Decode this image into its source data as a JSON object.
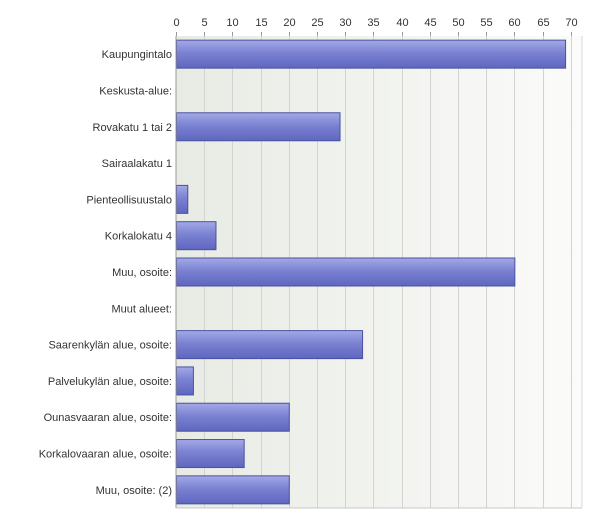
{
  "chart_data": {
    "type": "bar",
    "orientation": "horizontal",
    "categories": [
      "Kaupungintalo",
      "Keskusta-alue:",
      "Rovakatu 1 tai 2",
      "Sairaalakatu 1",
      "Pienteollisuustalo",
      "Korkalokatu 4",
      "Muu, osoite:",
      "Muut alueet:",
      "Saarenkylän alue, osoite:",
      "Palvelukylän alue, osoite:",
      "Ounasvaaran alue, osoite:",
      "Korkalovaaran alue, osoite:",
      "Muu, osoite: (2)"
    ],
    "values": [
      69,
      0,
      29,
      0,
      2,
      7,
      60,
      0,
      33,
      3,
      20,
      12,
      20
    ],
    "x_ticks": [
      "0",
      "5",
      "10",
      "15",
      "20",
      "25",
      "30",
      "35",
      "40",
      "45",
      "50",
      "55",
      "60",
      "65",
      "70"
    ],
    "xlim": [
      0,
      72
    ],
    "x_axis_position": "top",
    "grid": true,
    "title": "",
    "xlabel": "",
    "ylabel": "",
    "colors": {
      "bar_fill": "#7b82d2",
      "bar_edge": "#4a529e",
      "plot_bg_left": "#e8ebe4",
      "plot_bg_right": "#fbfbfa",
      "grid": "#d2d4cf",
      "axis": "#9a9a9a"
    }
  }
}
